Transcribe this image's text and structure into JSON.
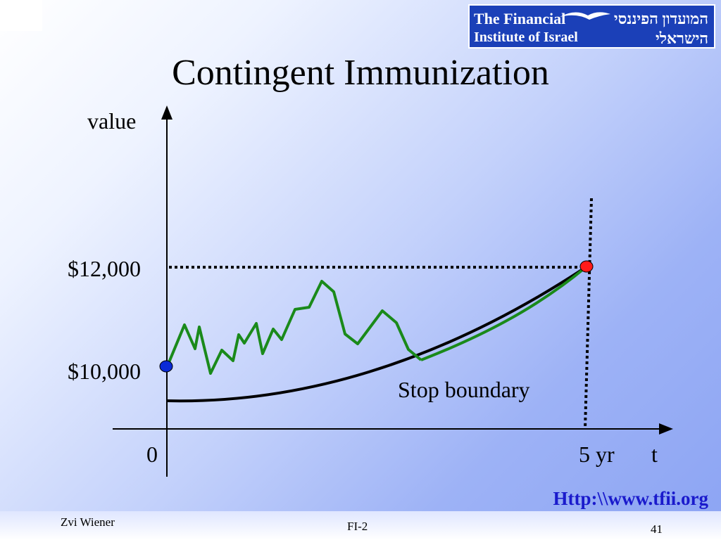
{
  "slide": {
    "title": "Contingent Immunization",
    "url": "Http:\\\\www.tfii.org",
    "author": "Zvi Wiener",
    "course": "FI-2",
    "page_number": "41"
  },
  "logo": {
    "english_line1": "The Financial",
    "english_line2": "Institute of Israel",
    "hebrew_line1": "המועדון הפיננסי",
    "hebrew_line2": "הישראלי",
    "bird_icon": "seagull-icon"
  },
  "diagram": {
    "y_axis_label": "value",
    "x_axis_label": "t",
    "origin_label": "0",
    "horizon_label": "5 yr",
    "target_value_label": "$12,000",
    "initial_value_label": "$10,000",
    "boundary_label": "Stop boundary",
    "colors": {
      "portfolio_path": "#1a8a1a",
      "stop_boundary": "#000000",
      "start_point": "#0a2bd6",
      "end_point": "#ff1a1a",
      "axes": "#000000"
    }
  }
}
